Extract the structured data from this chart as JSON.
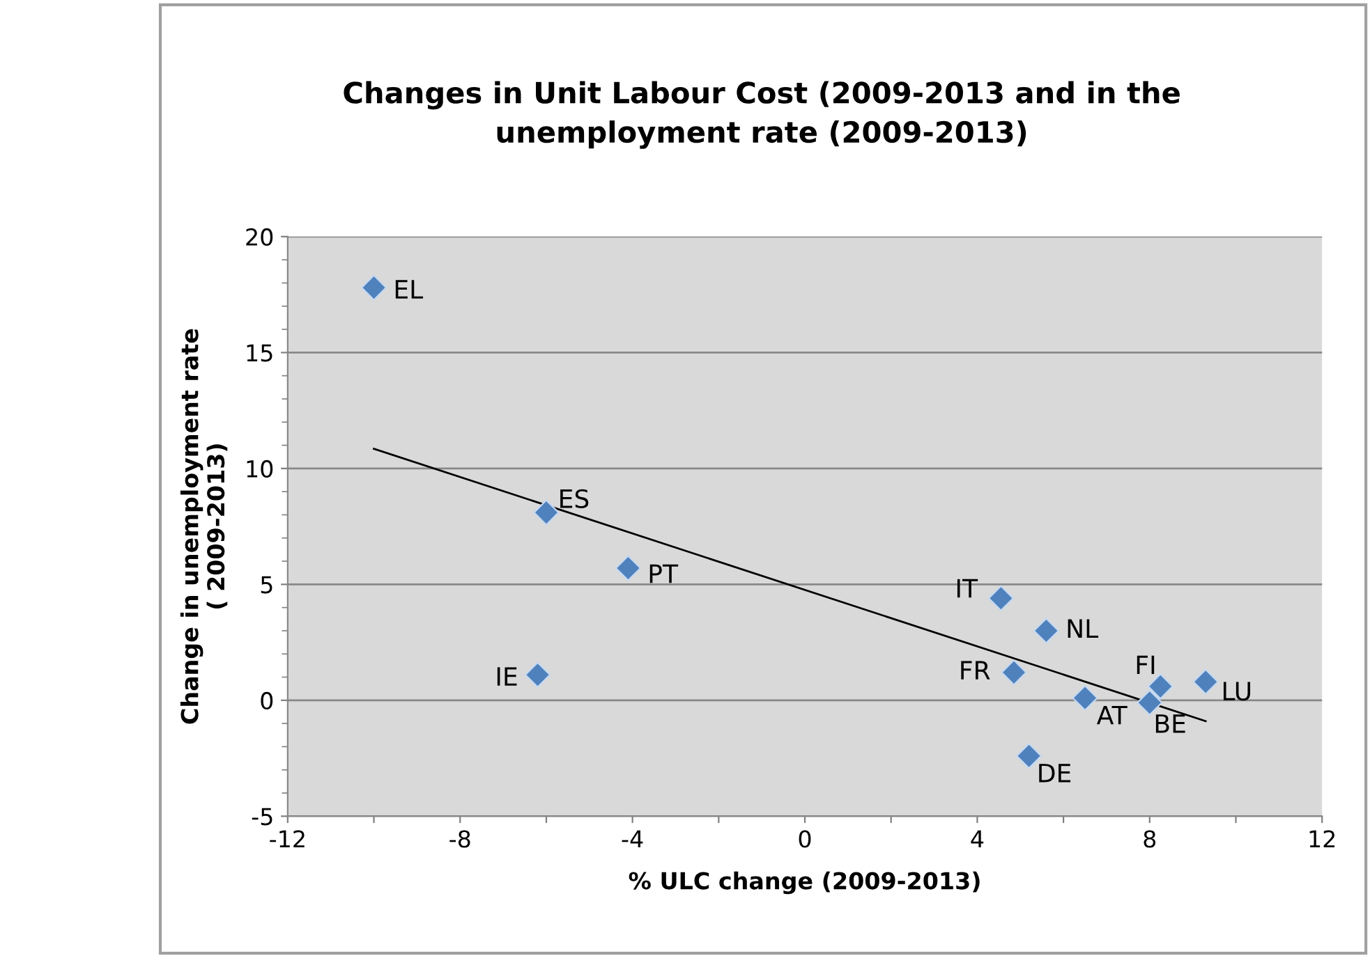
{
  "chart_data": {
    "type": "scatter",
    "title": "Changes in Unit Labour Cost (2009-2013 and in the\nunemployment rate (2009-2013)",
    "xlabel": "% ULC change (2009-2013)",
    "ylabel": "Change in unemployment rate\n( 2009-2013)",
    "xlim": [
      -12,
      12
    ],
    "xticks": [
      -12,
      {
        "value": -10,
        "label": null
      },
      -8,
      {
        "value": -6,
        "label": null
      },
      -4,
      {
        "value": -2,
        "label": null
      },
      0,
      {
        "value": 2,
        "label": null
      },
      4,
      {
        "value": 6,
        "label": null
      },
      8,
      {
        "value": 10,
        "label": null
      },
      12
    ],
    "ylim": [
      -5,
      20
    ],
    "yticks": [
      -5,
      0,
      5,
      10,
      15,
      20
    ],
    "grid": "y",
    "legend": false,
    "series": [
      {
        "marker": "diamond",
        "color": "#4f81bd",
        "x": [
          -10,
          -6.0,
          -4.1,
          -6.2,
          4.55,
          5.6,
          4.85,
          6.5,
          8.25,
          8.0,
          9.3,
          5.2
        ],
        "values": [
          17.8,
          8.1,
          5.7,
          1.1,
          4.4,
          3.0,
          1.2,
          0.1,
          0.6,
          -0.1,
          0.8,
          -2.4
        ]
      },
      {
        "type": "line",
        "color": "#000000",
        "x": [
          -10,
          9.3
        ],
        "values": [
          10.85,
          -0.9
        ]
      }
    ],
    "annotations": [
      {
        "text": "EL",
        "x": -10,
        "y": 17.8
      },
      {
        "text": "ES",
        "x": -6.0,
        "y": 8.1
      },
      {
        "text": "PT",
        "x": -4.1,
        "y": 5.7
      },
      {
        "text": "IE",
        "x": -6.2,
        "y": 1.1
      },
      {
        "text": "IT",
        "x": 4.55,
        "y": 4.4
      },
      {
        "text": "NL",
        "x": 5.6,
        "y": 3.0
      },
      {
        "text": "FR",
        "x": 4.85,
        "y": 1.2
      },
      {
        "text": "AT",
        "x": 6.5,
        "y": 0.1
      },
      {
        "text": "FI",
        "x": 8.25,
        "y": 0.6
      },
      {
        "text": "BE",
        "x": 8.0,
        "y": -0.1
      },
      {
        "text": "LU",
        "x": 9.3,
        "y": 0.8
      },
      {
        "text": "DE",
        "x": 5.2,
        "y": -2.4
      }
    ]
  }
}
